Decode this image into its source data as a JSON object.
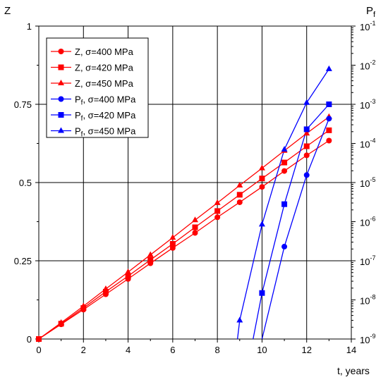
{
  "chart_data": {
    "type": "line",
    "xlabel": "t, years",
    "ylabel_left": "Z",
    "ylabel_right_base": "P",
    "ylabel_right_sub": "f",
    "xlim": [
      0,
      14
    ],
    "xticks": [
      "0",
      "2",
      "4",
      "6",
      "8",
      "10",
      "12",
      "14"
    ],
    "ylim_left": [
      0,
      1
    ],
    "yticks_left": [
      "0",
      "0.25",
      "0.5",
      "0.75",
      "1"
    ],
    "right_axis_scale": "log",
    "ylim_right": [
      1e-09,
      0.1
    ],
    "yticks_right": [
      {
        "base": "10",
        "exp": "-9"
      },
      {
        "base": "10",
        "exp": "-8"
      },
      {
        "base": "10",
        "exp": "-7"
      },
      {
        "base": "10",
        "exp": "-6"
      },
      {
        "base": "10",
        "exp": "-5"
      },
      {
        "base": "10",
        "exp": "-4"
      },
      {
        "base": "10",
        "exp": "-3"
      },
      {
        "base": "10",
        "exp": "-2"
      },
      {
        "base": "10",
        "exp": "-1"
      }
    ],
    "grid": true,
    "legend_position": "top-left",
    "series": [
      {
        "name": "Z, σ=400 MPa",
        "prefix": "Z",
        "suffix": ", σ=400 MPa",
        "color": "#ff0000",
        "marker": "circle",
        "axis": "left",
        "x": [
          0,
          1,
          2,
          3,
          4,
          5,
          6,
          7,
          8,
          9,
          10,
          11,
          12,
          13
        ],
        "y": [
          0,
          0.047,
          0.094,
          0.143,
          0.192,
          0.242,
          0.291,
          0.339,
          0.389,
          0.437,
          0.486,
          0.537,
          0.587,
          0.634
        ]
      },
      {
        "name": "Z, σ=420 MPa",
        "prefix": "Z",
        "suffix": ", σ=420 MPa",
        "color": "#ff0000",
        "marker": "square",
        "axis": "left",
        "x": [
          0,
          1,
          2,
          3,
          4,
          5,
          6,
          7,
          8,
          9,
          10,
          11,
          12,
          13
        ],
        "y": [
          0,
          0.049,
          0.099,
          0.151,
          0.201,
          0.253,
          0.304,
          0.357,
          0.409,
          0.461,
          0.513,
          0.564,
          0.616,
          0.667
        ]
      },
      {
        "name": "Z, σ=450 MPa",
        "prefix": "Z",
        "suffix": ", σ=450 MPa",
        "color": "#ff0000",
        "marker": "triangle",
        "axis": "left",
        "x": [
          0,
          1,
          2,
          3,
          4,
          5,
          6,
          7,
          8,
          9,
          10,
          11,
          12,
          13
        ],
        "y": [
          0,
          0.052,
          0.105,
          0.16,
          0.214,
          0.269,
          0.324,
          0.38,
          0.435,
          0.491,
          0.546,
          0.602,
          0.657,
          0.71
        ]
      },
      {
        "name": "Pf, σ=400 MPa",
        "prefix": "P",
        "sub": "f",
        "suffix": ", σ=400 MPa",
        "color": "#0000ff",
        "marker": "circle",
        "axis": "right",
        "x": [
          10,
          11,
          12,
          13
        ],
        "y": [
          1e-09,
          2.3e-07,
          1.55e-05,
          0.00043
        ]
      },
      {
        "name": "Pf, σ=420 MPa",
        "prefix": "P",
        "sub": "f",
        "suffix": ", σ=420 MPa",
        "color": "#0000ff",
        "marker": "square",
        "axis": "right",
        "x": [
          9.6,
          10,
          11,
          12,
          13
        ],
        "y": [
          1e-09,
          1.5e-08,
          2.8e-06,
          0.00023,
          0.001
        ]
      },
      {
        "name": "Pf, σ=450 MPa",
        "prefix": "P",
        "sub": "f",
        "suffix": ", σ=450 MPa",
        "color": "#0000ff",
        "marker": "triangle",
        "axis": "right",
        "x": [
          8.9,
          9,
          10,
          11,
          12,
          13
        ],
        "y": [
          1e-09,
          3e-09,
          8.5e-07,
          7e-05,
          0.0011,
          0.008
        ]
      }
    ]
  }
}
